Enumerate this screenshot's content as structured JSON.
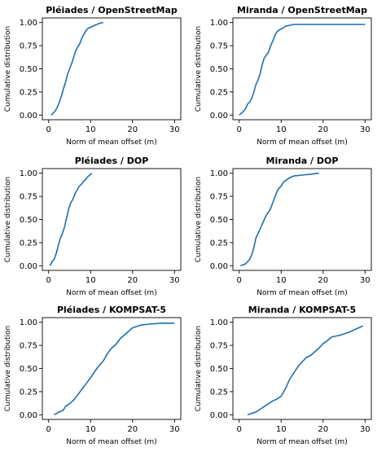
{
  "figure": {
    "line_color": "#1f6fad"
  },
  "chart_data": [
    {
      "type": "line",
      "title": "Pléiades / OpenStreetMap",
      "xlabel": "Norm of mean offset (m)",
      "ylabel": "Cumulative distribution",
      "xlim": [
        0,
        30
      ],
      "ylim": [
        0,
        1
      ],
      "xticks": [
        "0",
        "10",
        "20",
        "30"
      ],
      "yticks": [
        "0.00",
        "0.25",
        "0.50",
        "0.75",
        "1.00"
      ],
      "grid": false,
      "series": [
        {
          "x": [
            0.6,
            1.5,
            2.0,
            2.5,
            3.0,
            3.5,
            4.0,
            4.5,
            5.0,
            5.5,
            6.0,
            6.5,
            7.0,
            7.5,
            8.0,
            8.5,
            9.0,
            9.5,
            10.0,
            11.0,
            12.0,
            13.0
          ],
          "y": [
            0.0,
            0.04,
            0.08,
            0.13,
            0.2,
            0.28,
            0.35,
            0.44,
            0.5,
            0.56,
            0.63,
            0.7,
            0.74,
            0.78,
            0.84,
            0.88,
            0.92,
            0.94,
            0.95,
            0.97,
            0.99,
            1.0
          ]
        }
      ]
    },
    {
      "type": "line",
      "title": "Miranda / OpenStreetMap",
      "xlabel": "Norm of mean offset (m)",
      "ylabel": "Cumulative distribution",
      "xlim": [
        0,
        30
      ],
      "ylim": [
        0,
        1
      ],
      "xticks": [
        "0",
        "10",
        "20",
        "30"
      ],
      "yticks": [
        "0.00",
        "0.25",
        "0.50",
        "0.75",
        "1.00"
      ],
      "grid": false,
      "series": [
        {
          "x": [
            0.0,
            1.0,
            1.5,
            2.0,
            2.5,
            3.0,
            3.5,
            4.0,
            4.5,
            5.0,
            5.5,
            6.0,
            6.5,
            7.0,
            7.5,
            8.0,
            8.5,
            9.0,
            9.5,
            10.0,
            10.5,
            11.0,
            12.0,
            13.0,
            30.0
          ],
          "y": [
            0.0,
            0.04,
            0.07,
            0.12,
            0.14,
            0.18,
            0.25,
            0.33,
            0.38,
            0.45,
            0.55,
            0.62,
            0.65,
            0.68,
            0.75,
            0.8,
            0.86,
            0.9,
            0.92,
            0.93,
            0.94,
            0.96,
            0.97,
            0.98,
            0.98
          ]
        }
      ]
    },
    {
      "type": "line",
      "title": "Pléiades / DOP",
      "xlabel": "Norm of mean offset (m)",
      "ylabel": "Cumulative distribution",
      "xlim": [
        0,
        30
      ],
      "ylim": [
        0,
        1
      ],
      "xticks": [
        "0",
        "10",
        "20",
        "30"
      ],
      "yticks": [
        "0.00",
        "0.25",
        "0.50",
        "0.75",
        "1.00"
      ],
      "grid": false,
      "series": [
        {
          "x": [
            0.3,
            0.8,
            1.3,
            1.8,
            2.3,
            2.8,
            3.3,
            3.8,
            4.3,
            4.8,
            5.3,
            5.8,
            6.3,
            6.8,
            7.3,
            7.8,
            8.3,
            8.8,
            9.3,
            9.8,
            10.3
          ],
          "y": [
            0.0,
            0.04,
            0.07,
            0.13,
            0.22,
            0.3,
            0.35,
            0.42,
            0.52,
            0.62,
            0.68,
            0.72,
            0.78,
            0.82,
            0.86,
            0.88,
            0.91,
            0.93,
            0.96,
            0.98,
            1.0
          ]
        }
      ]
    },
    {
      "type": "line",
      "title": "Miranda / DOP",
      "xlabel": "Norm of mean offset (m)",
      "ylabel": "Cumulative distribution",
      "xlim": [
        0,
        30
      ],
      "ylim": [
        0,
        1
      ],
      "xticks": [
        "0",
        "10",
        "20",
        "30"
      ],
      "yticks": [
        "0.00",
        "0.25",
        "0.50",
        "0.75",
        "1.00"
      ],
      "grid": false,
      "series": [
        {
          "x": [
            0.3,
            1.5,
            2.5,
            3.0,
            3.5,
            4.0,
            4.5,
            5.0,
            5.5,
            6.0,
            6.5,
            7.0,
            7.5,
            8.0,
            8.5,
            9.0,
            9.5,
            10.0,
            10.5,
            11.0,
            12.0,
            13.0,
            15.0,
            19.0
          ],
          "y": [
            0.0,
            0.02,
            0.07,
            0.12,
            0.2,
            0.3,
            0.35,
            0.4,
            0.45,
            0.5,
            0.55,
            0.58,
            0.62,
            0.68,
            0.74,
            0.8,
            0.84,
            0.86,
            0.9,
            0.92,
            0.95,
            0.97,
            0.98,
            1.0
          ]
        }
      ]
    },
    {
      "type": "line",
      "title": "Pléiades / KOMPSAT-5",
      "xlabel": "Norm of mean offset (m)",
      "ylabel": "Cumulative distribution",
      "xlim": [
        0,
        30
      ],
      "ylim": [
        0,
        1
      ],
      "xticks": [
        "0",
        "10",
        "20",
        "30"
      ],
      "yticks": [
        "0.00",
        "0.25",
        "0.50",
        "0.75",
        "1.00"
      ],
      "grid": false,
      "series": [
        {
          "x": [
            1.3,
            2.5,
            3.5,
            4.0,
            5.0,
            6.0,
            7.0,
            8.0,
            9.0,
            10.0,
            11.0,
            12.0,
            13.0,
            14.0,
            15.0,
            16.0,
            17.0,
            18.0,
            19.0,
            20.0,
            22.0,
            24.0,
            27.0,
            30.0
          ],
          "y": [
            0.0,
            0.03,
            0.05,
            0.09,
            0.12,
            0.16,
            0.22,
            0.28,
            0.34,
            0.4,
            0.47,
            0.53,
            0.58,
            0.66,
            0.72,
            0.76,
            0.82,
            0.86,
            0.9,
            0.94,
            0.97,
            0.98,
            0.99,
            0.99
          ]
        }
      ]
    },
    {
      "type": "line",
      "title": "Miranda / KOMPSAT-5",
      "xlabel": "Norm of mean offset (m)",
      "ylabel": "Cumulative distribution",
      "xlim": [
        0,
        30
      ],
      "ylim": [
        0,
        1
      ],
      "xticks": [
        "0",
        "10",
        "20",
        "30"
      ],
      "yticks": [
        "0.00",
        "0.25",
        "0.50",
        "0.75",
        "1.00"
      ],
      "grid": false,
      "series": [
        {
          "x": [
            2.0,
            4.0,
            5.0,
            6.0,
            7.0,
            8.0,
            9.0,
            10.0,
            11.0,
            11.5,
            12.0,
            13.0,
            14.0,
            15.0,
            16.0,
            17.0,
            18.0,
            19.0,
            20.0,
            21.0,
            22.0,
            24.0,
            26.0,
            28.0,
            29.5
          ],
          "y": [
            0.0,
            0.03,
            0.06,
            0.09,
            0.12,
            0.15,
            0.17,
            0.2,
            0.28,
            0.33,
            0.38,
            0.45,
            0.52,
            0.57,
            0.62,
            0.64,
            0.68,
            0.72,
            0.77,
            0.8,
            0.84,
            0.86,
            0.89,
            0.93,
            0.96
          ]
        }
      ]
    }
  ]
}
